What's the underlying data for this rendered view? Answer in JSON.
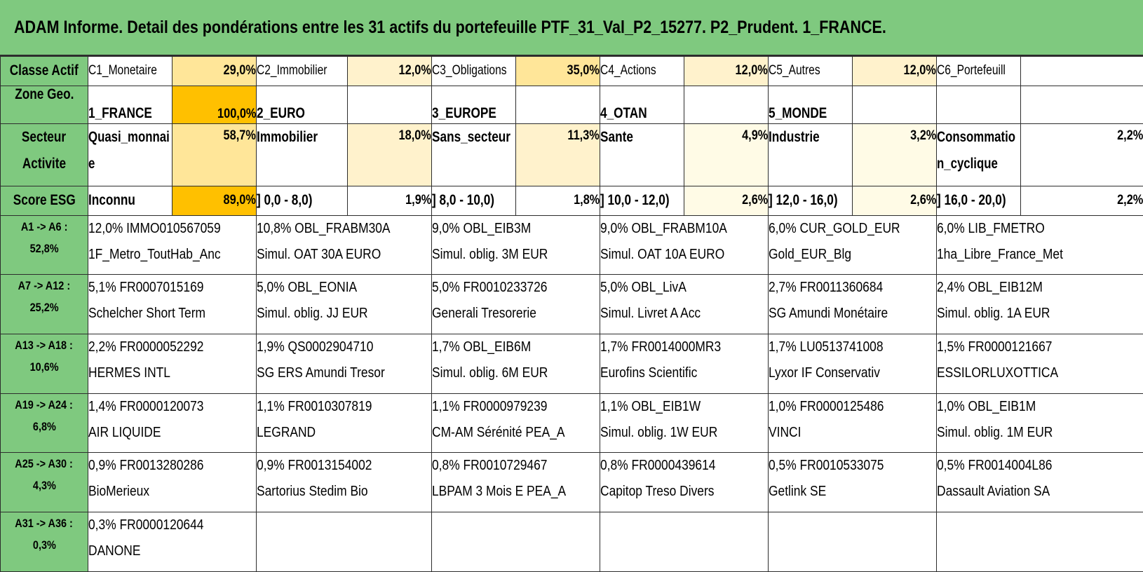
{
  "title": "ADAM Informe. Detail des pondérations entre les 31 actifs du portefeuille PTF_31_Val_P2_15277. P2_Prudent. 1_FRANCE.",
  "colors": {
    "green": "#7fc97f",
    "shade_strong": "#ffc000",
    "shade_medium": "#ffe699",
    "shade_light": "#fff2cc",
    "shade_faint": "#fffbe6"
  },
  "classe": {
    "label": "Classe Actif",
    "items": [
      {
        "name": "C1_Monetaire",
        "value": "29,0%"
      },
      {
        "name": "C2_Immobilier",
        "value": "12,0%"
      },
      {
        "name": "C3_Obligations",
        "value": "35,0%"
      },
      {
        "name": "C4_Actions",
        "value": "12,0%"
      },
      {
        "name": "C5_Autres",
        "value": "12,0%"
      },
      {
        "name": "C6_Portefeuill",
        "value": ""
      }
    ]
  },
  "zone": {
    "label": "Zone Geo.",
    "items": [
      {
        "name": "1_FRANCE",
        "value": "100,0%"
      },
      {
        "name": "2_EURO",
        "value": ""
      },
      {
        "name": "3_EUROPE",
        "value": ""
      },
      {
        "name": "4_OTAN",
        "value": ""
      },
      {
        "name": "5_MONDE",
        "value": ""
      },
      {
        "name": "",
        "value": ""
      }
    ]
  },
  "secteur": {
    "label_line1": "Secteur",
    "label_line2": "Activite",
    "items": [
      {
        "name": "Quasi_monnaie",
        "value": "58,7%"
      },
      {
        "name": "Immobilier",
        "value": "18,0%"
      },
      {
        "name": "Sans_secteur",
        "value": "11,3%"
      },
      {
        "name": "Sante",
        "value": "4,9%"
      },
      {
        "name": "Industrie",
        "value": "3,2%"
      },
      {
        "name": "Consommation_cyclique",
        "value": "2,2%"
      }
    ]
  },
  "esg": {
    "label": "Score ESG",
    "items": [
      {
        "name": "Inconnu",
        "value": "89,0%"
      },
      {
        "name": "] 0,0 - 8,0)",
        "value": "1,9%"
      },
      {
        "name": "] 8,0 - 10,0)",
        "value": "1,8%"
      },
      {
        "name": "] 10,0 - 12,0)",
        "value": "2,6%"
      },
      {
        "name": "] 12,0 - 16,0)",
        "value": "2,6%"
      },
      {
        "name": "] 16,0 - 20,0)",
        "value": "2,2%"
      }
    ]
  },
  "assets": [
    {
      "range": "A1 -> A6 :",
      "total": "52,8%",
      "cells": [
        {
          "l1": "12,0% IMMO010567059",
          "l2": "1F_Metro_ToutHab_Anc"
        },
        {
          "l1": "10,8% OBL_FRABM30A",
          "l2": "Simul. OAT 30A EURO"
        },
        {
          "l1": "9,0% OBL_EIB3M",
          "l2": "Simul. oblig. 3M EUR"
        },
        {
          "l1": "9,0% OBL_FRABM10A",
          "l2": "Simul. OAT 10A EURO"
        },
        {
          "l1": "6,0% CUR_GOLD_EUR",
          "l2": "Gold_EUR_Blg"
        },
        {
          "l1": "6,0% LIB_FMETRO",
          "l2": "1ha_Libre_France_Met"
        }
      ]
    },
    {
      "range": "A7 -> A12 :",
      "total": "25,2%",
      "cells": [
        {
          "l1": "5,1% FR0007015169",
          "l2": "Schelcher Short Term"
        },
        {
          "l1": "5,0% OBL_EONIA",
          "l2": "Simul. oblig. JJ EUR"
        },
        {
          "l1": "5,0% FR0010233726",
          "l2": "Generali Tresorerie"
        },
        {
          "l1": "5,0% OBL_LivA",
          "l2": "Simul. Livret A Acc"
        },
        {
          "l1": "2,7% FR0011360684",
          "l2": "SG Amundi Monétaire"
        },
        {
          "l1": "2,4% OBL_EIB12M",
          "l2": "Simul. oblig. 1A EUR"
        }
      ]
    },
    {
      "range": "A13 -> A18 :",
      "total": "10,6%",
      "cells": [
        {
          "l1": "2,2% FR0000052292",
          "l2": "HERMES INTL"
        },
        {
          "l1": "1,9% QS0002904710",
          "l2": "SG ERS Amundi Tresor"
        },
        {
          "l1": "1,7% OBL_EIB6M",
          "l2": "Simul. oblig. 6M EUR"
        },
        {
          "l1": "1,7% FR0014000MR3",
          "l2": "Eurofins Scientific"
        },
        {
          "l1": "1,7% LU0513741008",
          "l2": "Lyxor IF Conservativ"
        },
        {
          "l1": "1,5% FR0000121667",
          "l2": "ESSILORLUXOTTICA"
        }
      ]
    },
    {
      "range": "A19 -> A24 :",
      "total": "6,8%",
      "cells": [
        {
          "l1": "1,4% FR0000120073",
          "l2": "AIR LIQUIDE"
        },
        {
          "l1": "1,1% FR0010307819",
          "l2": "LEGRAND"
        },
        {
          "l1": "1,1% FR0000979239",
          "l2": "CM-AM Sérénité PEA_A"
        },
        {
          "l1": "1,1% OBL_EIB1W",
          "l2": "Simul. oblig. 1W EUR"
        },
        {
          "l1": "1,0% FR0000125486",
          "l2": "VINCI"
        },
        {
          "l1": "1,0% OBL_EIB1M",
          "l2": "Simul. oblig. 1M EUR"
        }
      ]
    },
    {
      "range": "A25 -> A30 :",
      "total": "4,3%",
      "cells": [
        {
          "l1": "0,9% FR0013280286",
          "l2": "BioMerieux"
        },
        {
          "l1": "0,9% FR0013154002",
          "l2": "Sartorius Stedim Bio"
        },
        {
          "l1": "0,8% FR0010729467",
          "l2": "LBPAM 3 Mois E PEA_A"
        },
        {
          "l1": "0,8% FR0000439614",
          "l2": "Capitop Treso Divers"
        },
        {
          "l1": "0,5% FR0010533075",
          "l2": "Getlink SE"
        },
        {
          "l1": "0,5% FR0014004L86",
          "l2": "Dassault Aviation SA"
        }
      ]
    },
    {
      "range": "A31 -> A36 :",
      "total": "0,3%",
      "cells": [
        {
          "l1": "0,3% FR0000120644",
          "l2": "DANONE"
        },
        {
          "l1": "",
          "l2": ""
        },
        {
          "l1": "",
          "l2": ""
        },
        {
          "l1": "",
          "l2": ""
        },
        {
          "l1": "",
          "l2": ""
        },
        {
          "l1": "",
          "l2": ""
        }
      ]
    }
  ]
}
